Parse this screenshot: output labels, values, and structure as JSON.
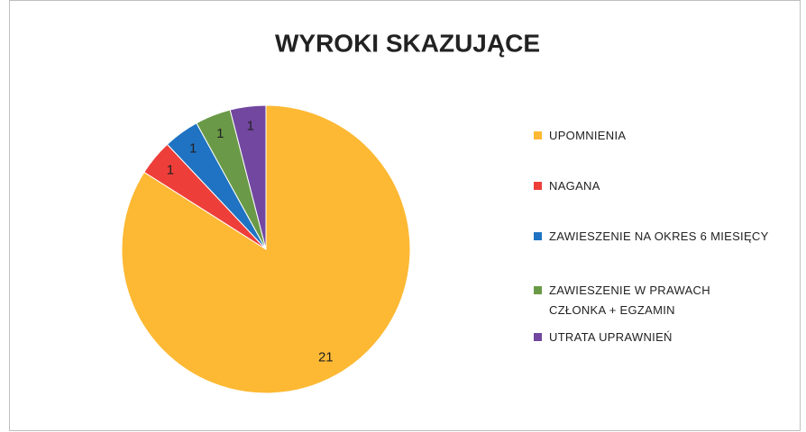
{
  "chart_data": {
    "type": "pie",
    "title": "WYROKI SKAZUJĄCE",
    "categories": [
      "UPOMNIENIA",
      "NAGANA",
      "ZAWIESZENIE NA OKRES 6 MIESIĘCY",
      "ZAWIESZENIE W PRAWACH CZŁONKA + EGZAMIN",
      "UTRATA UPRAWNIEŃ"
    ],
    "values": [
      21,
      1,
      1,
      1,
      1
    ],
    "colors": [
      "#FDB933",
      "#EE3E3A",
      "#1F73C2",
      "#6A9A47",
      "#7247A0"
    ],
    "legend": "right"
  }
}
